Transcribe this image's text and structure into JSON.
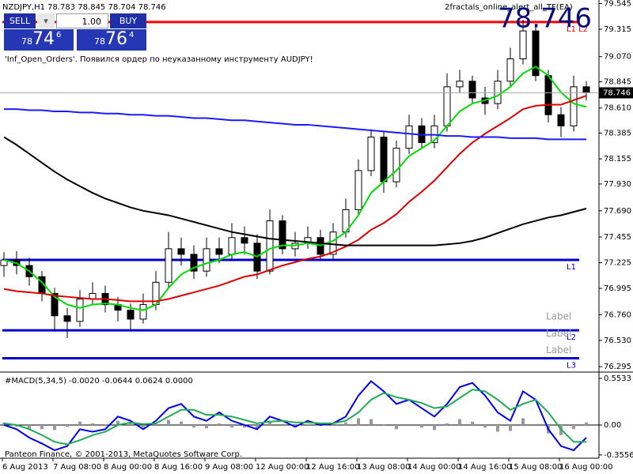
{
  "panel": {
    "sell_label": "SELL",
    "buy_label": "BUY",
    "lot": "1.00",
    "sell_price": [
      "78",
      "74",
      "6"
    ],
    "buy_price": [
      "78",
      "76",
      "4"
    ],
    "message": "'Inf_Open_Orders'. Появился ордер по неуказанному инструменту AUDJPY!",
    "copyright": "Panteon Finance, © 2001-2013, MetaQuotes Software Corp."
  },
  "chart_data": [
    {
      "type": "candlestick",
      "title": "NZDJPY,H1  78.783 78.845 78.704 78.746",
      "subtitle": "2fractals_online_alert_all_TF(EA)",
      "last_price": {
        "value": 78.746,
        "label": "78.746"
      },
      "categories": [
        "6 Aug 2013",
        null,
        null,
        null,
        "7 Aug 08:00",
        null,
        null,
        null,
        "8 Aug 00:00",
        null,
        null,
        null,
        "8 Aug 16:00",
        null,
        null,
        null,
        "9 Aug 08:00",
        null,
        null,
        null,
        "12 Aug 00:00",
        null,
        null,
        null,
        "12 Aug 16:00",
        null,
        null,
        null,
        "13 Aug 08:00",
        null,
        null,
        null,
        "14 Aug 00:00",
        null,
        null,
        null,
        "14 Aug 16:00",
        null,
        null,
        null,
        "15 Aug 08:00",
        null,
        null,
        null,
        "16 Aug 00:00",
        null,
        null
      ],
      "open": [
        77.2,
        77.25,
        77.2,
        77.1,
        76.95,
        76.75,
        76.7,
        76.9,
        76.95,
        76.85,
        76.8,
        76.72,
        76.85,
        77.05,
        77.35,
        77.3,
        77.15,
        77.35,
        77.3,
        77.45,
        77.4,
        77.15,
        77.6,
        77.35,
        77.4,
        77.45,
        77.3,
        77.5,
        77.7,
        78.05,
        78.35,
        77.95,
        78.25,
        78.45,
        78.3,
        78.45,
        78.8,
        78.85,
        78.7,
        78.65,
        78.85,
        79.05,
        79.3,
        78.9,
        78.55,
        78.45,
        78.8
      ],
      "high": [
        77.32,
        77.33,
        77.27,
        77.15,
        77.0,
        76.82,
        76.98,
        77.05,
        77.02,
        76.92,
        76.86,
        76.95,
        77.15,
        77.5,
        77.45,
        77.38,
        77.45,
        77.45,
        77.58,
        77.55,
        77.48,
        77.7,
        77.65,
        77.5,
        77.55,
        77.52,
        77.58,
        77.8,
        78.15,
        78.42,
        78.4,
        78.32,
        78.55,
        78.52,
        78.55,
        78.92,
        78.95,
        78.9,
        78.8,
        78.95,
        79.15,
        79.4,
        79.35,
        78.95,
        78.62,
        78.9,
        78.85
      ],
      "low": [
        77.1,
        77.12,
        77.02,
        76.88,
        76.62,
        76.55,
        76.65,
        76.85,
        76.78,
        76.7,
        76.62,
        76.68,
        76.8,
        77.0,
        77.2,
        77.08,
        77.1,
        77.22,
        77.25,
        77.3,
        77.08,
        77.12,
        77.3,
        77.28,
        77.35,
        77.25,
        77.25,
        77.45,
        77.65,
        78.0,
        77.85,
        77.9,
        78.2,
        78.25,
        78.25,
        78.4,
        78.75,
        78.65,
        78.55,
        78.6,
        78.8,
        79.0,
        78.85,
        78.48,
        78.35,
        78.4,
        78.68
      ],
      "close": [
        77.25,
        77.2,
        77.1,
        76.95,
        76.75,
        76.7,
        76.9,
        76.95,
        76.85,
        76.8,
        76.72,
        76.85,
        77.05,
        77.35,
        77.3,
        77.15,
        77.35,
        77.3,
        77.45,
        77.4,
        77.15,
        77.6,
        77.35,
        77.4,
        77.45,
        77.3,
        77.5,
        77.7,
        78.05,
        78.35,
        77.95,
        78.25,
        78.45,
        78.3,
        78.45,
        78.8,
        78.85,
        78.7,
        78.65,
        78.85,
        79.05,
        79.3,
        78.9,
        78.55,
        78.45,
        78.8,
        78.746
      ],
      "candle_color": "#000",
      "series": [
        {
          "color": "#00dd00",
          "values": [
            77.25,
            77.22,
            77.15,
            77.05,
            76.92,
            76.85,
            76.82,
            76.85,
            76.86,
            76.85,
            76.82,
            76.8,
            76.85,
            77.0,
            77.12,
            77.18,
            77.22,
            77.25,
            77.3,
            77.32,
            77.28,
            77.35,
            77.38,
            77.38,
            77.4,
            77.38,
            77.42,
            77.5,
            77.65,
            77.85,
            77.95,
            78.05,
            78.18,
            78.25,
            78.32,
            78.45,
            78.58,
            78.65,
            78.68,
            78.72,
            78.8,
            78.92,
            78.98,
            78.9,
            78.75,
            78.65,
            78.62
          ]
        },
        {
          "color": "#dd0000",
          "values": [
            76.99,
            76.97,
            76.96,
            76.95,
            76.93,
            76.92,
            76.91,
            76.9,
            76.9,
            76.89,
            76.88,
            76.88,
            76.88,
            76.9,
            76.93,
            76.96,
            76.99,
            77.02,
            77.06,
            77.1,
            77.12,
            77.16,
            77.2,
            77.23,
            77.26,
            77.28,
            77.32,
            77.37,
            77.43,
            77.52,
            77.58,
            77.66,
            77.77,
            77.86,
            77.96,
            78.08,
            78.2,
            78.3,
            78.38,
            78.45,
            78.52,
            78.6,
            78.63,
            78.64,
            78.64,
            78.68,
            78.72
          ]
        },
        {
          "color": "#000000",
          "values": [
            78.35,
            78.28,
            78.2,
            78.12,
            78.04,
            77.97,
            77.91,
            77.85,
            77.8,
            77.76,
            77.72,
            77.69,
            77.67,
            77.65,
            77.62,
            77.59,
            77.56,
            77.53,
            77.5,
            77.48,
            77.46,
            77.44,
            77.43,
            77.42,
            77.41,
            77.4,
            77.39,
            77.38,
            77.38,
            77.38,
            77.38,
            77.38,
            77.38,
            77.38,
            77.38,
            77.39,
            77.4,
            77.42,
            77.45,
            77.49,
            77.53,
            77.57,
            77.6,
            77.63,
            77.65,
            77.68,
            77.71
          ]
        },
        {
          "color": "#1a1aff",
          "values": [
            78.6,
            78.6,
            78.59,
            78.59,
            78.58,
            78.58,
            78.57,
            78.57,
            78.56,
            78.56,
            78.55,
            78.55,
            78.54,
            78.54,
            78.53,
            78.52,
            78.52,
            78.51,
            78.5,
            78.5,
            78.49,
            78.48,
            78.47,
            78.46,
            78.46,
            78.45,
            78.44,
            78.43,
            78.42,
            78.41,
            78.4,
            78.39,
            78.38,
            78.37,
            78.37,
            78.36,
            78.36,
            78.35,
            78.35,
            78.35,
            78.34,
            78.34,
            78.34,
            78.33,
            78.33,
            78.33,
            78.33
          ]
        }
      ],
      "levels": [
        {
          "name": "L1 L2",
          "value": 79.38,
          "color": "#ff0000"
        },
        {
          "name": "L1",
          "value": 77.25,
          "color": "#0000cc"
        },
        {
          "name": "L2",
          "value": 76.62,
          "color": "#0000cc"
        },
        {
          "name": "L3",
          "value": 76.37,
          "color": "#0000cc"
        }
      ],
      "annotations": [
        {
          "text": "Label",
          "value": 76.74
        },
        {
          "text": "Label",
          "value": 76.59
        },
        {
          "text": "Label",
          "value": 76.44
        }
      ],
      "ylim": [
        76.253,
        79.577
      ],
      "yticks": [
        {
          "value": 79.545,
          "label": "79.545"
        },
        {
          "value": 79.315,
          "label": "79.315"
        },
        {
          "value": 79.07,
          "label": "79.070"
        },
        {
          "value": 78.845,
          "label": "78.845"
        },
        {
          "value": 78.61,
          "label": "78.610"
        },
        {
          "value": 78.385,
          "label": "78.385"
        },
        {
          "value": 78.155,
          "label": "78.155"
        },
        {
          "value": 77.93,
          "label": "77.930"
        },
        {
          "value": 77.69,
          "label": "77.690"
        },
        {
          "value": 77.455,
          "label": "77.455"
        },
        {
          "value": 77.225,
          "label": "77.225"
        },
        {
          "value": 76.995,
          "label": "76.995"
        },
        {
          "value": 76.76,
          "label": "76.760"
        },
        {
          "value": 76.53,
          "label": "76.530"
        },
        {
          "value": 76.295,
          "label": "76.295"
        }
      ]
    },
    {
      "type": "macd",
      "title": "#MACD(5,34,5) -0.0020 -0.0644 0.0624 0.0000",
      "histogram": {
        "color": "#999999",
        "values": [
          0.03,
          -0.02,
          -0.05,
          -0.05,
          -0.06,
          -0.02,
          0.04,
          0.02,
          0.01,
          0.05,
          0.02,
          -0.03,
          0.02,
          0.06,
          0.04,
          -0.03,
          -0.04,
          0.02,
          -0.03,
          -0.03,
          -0.04,
          0.04,
          0.0,
          -0.03,
          0.01,
          -0.01,
          0.0,
          0.03,
          0.08,
          0.07,
          0.01,
          -0.05,
          0.0,
          -0.03,
          -0.06,
          0.02,
          0.07,
          0.04,
          -0.03,
          -0.08,
          -0.07,
          0.08,
          0.0,
          -0.1,
          -0.12,
          -0.05,
          0.03
        ]
      },
      "series": [
        {
          "color": "#0000ee",
          "values": [
            0.0,
            -0.05,
            -0.15,
            -0.22,
            -0.3,
            -0.25,
            -0.05,
            -0.08,
            -0.05,
            0.1,
            0.05,
            -0.05,
            0.05,
            0.2,
            0.25,
            0.1,
            0.05,
            0.15,
            0.05,
            0.0,
            -0.05,
            0.1,
            0.05,
            -0.02,
            0.05,
            0.0,
            0.02,
            0.1,
            0.35,
            0.52,
            0.4,
            0.25,
            0.3,
            0.2,
            0.1,
            0.25,
            0.45,
            0.5,
            0.35,
            0.15,
            0.05,
            0.4,
            0.3,
            -0.05,
            -0.25,
            -0.3,
            -0.15
          ]
        },
        {
          "color": "#22aa55",
          "values": [
            0.02,
            0.0,
            -0.05,
            -0.12,
            -0.2,
            -0.23,
            -0.18,
            -0.12,
            -0.08,
            0.0,
            0.03,
            0.01,
            0.02,
            0.1,
            0.18,
            0.18,
            0.12,
            0.12,
            0.1,
            0.06,
            0.02,
            0.04,
            0.05,
            0.03,
            0.03,
            0.02,
            0.02,
            0.05,
            0.15,
            0.3,
            0.38,
            0.33,
            0.3,
            0.26,
            0.2,
            0.22,
            0.32,
            0.42,
            0.4,
            0.3,
            0.18,
            0.25,
            0.3,
            0.15,
            -0.05,
            -0.2,
            -0.2
          ]
        }
      ],
      "ylim": [
        -0.394,
        0.6
      ],
      "yticks": [
        0.5533,
        {
          "value": 0,
          "label": "0.00"
        },
        -0.3556
      ]
    }
  ]
}
